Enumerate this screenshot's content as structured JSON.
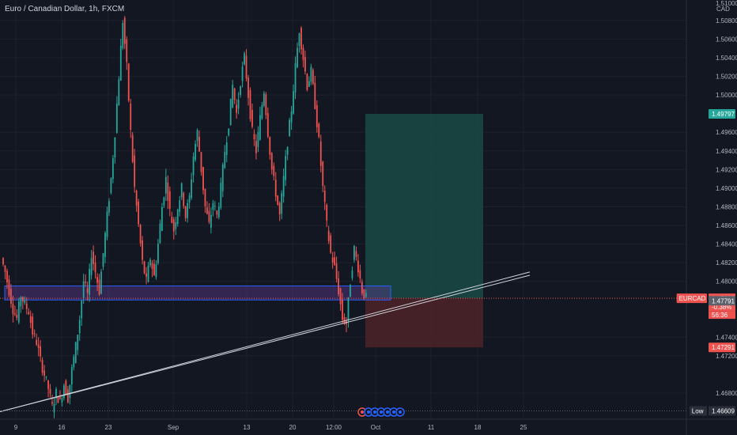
{
  "header": {
    "title": "Euro / Canadian Dollar, 1h, FXCM"
  },
  "colors": {
    "background": "#131722",
    "grid": "#1e222d",
    "up": "#26a69a",
    "down": "#ef5350",
    "zone_fill": "#5b3a8c",
    "zone_border": "#2962ff",
    "target": "#1a4a45",
    "stop": "#4a2228",
    "trendline": "#d1d4dc",
    "axis_text": "#b2b5be"
  },
  "chart_data": {
    "type": "candlestick",
    "title": "Euro / Canadian Dollar, 1h, FXCM",
    "y_unit": "CAD",
    "ylim": [
      1.4652,
      1.5102
    ],
    "y_ticks": [
      "1.50800",
      "1.50600",
      "1.50400",
      "1.50200",
      "1.50000",
      "1.49600",
      "1.49400",
      "1.49200",
      "1.49000",
      "1.48800",
      "1.48600",
      "1.48400",
      "1.48200",
      "1.48000",
      "1.47400",
      "1.47200",
      "1.46800"
    ],
    "y_top_partial": "1.51000",
    "x_ticks": [
      "9",
      "16",
      "23",
      "Sep",
      "13",
      "20",
      "12:00",
      "Oct",
      "11",
      "18",
      "25"
    ],
    "price_path": [
      [
        0,
        1.4825
      ],
      [
        2,
        1.481
      ],
      [
        4,
        1.479
      ],
      [
        6,
        1.477
      ],
      [
        8,
        1.476
      ],
      [
        10,
        1.4785
      ],
      [
        12,
        1.4775
      ],
      [
        14,
        1.4768
      ],
      [
        16,
        1.4745
      ],
      [
        18,
        1.4735
      ],
      [
        20,
        1.4715
      ],
      [
        22,
        1.47
      ],
      [
        24,
        1.4685
      ],
      [
        26,
        1.4665
      ],
      [
        28,
        1.468
      ],
      [
        30,
        1.467
      ],
      [
        32,
        1.469
      ],
      [
        34,
        1.4675
      ],
      [
        36,
        1.4705
      ],
      [
        38,
        1.473
      ],
      [
        40,
        1.476
      ],
      [
        42,
        1.48
      ],
      [
        44,
        1.4785
      ],
      [
        46,
        1.483
      ],
      [
        48,
        1.481
      ],
      [
        50,
        1.479
      ],
      [
        52,
        1.483
      ],
      [
        54,
        1.487
      ],
      [
        56,
        1.491
      ],
      [
        58,
        1.496
      ],
      [
        60,
        1.502
      ],
      [
        62,
        1.508
      ],
      [
        64,
        1.503
      ],
      [
        66,
        1.496
      ],
      [
        68,
        1.49
      ],
      [
        70,
        1.486
      ],
      [
        72,
        1.482
      ],
      [
        74,
        1.48
      ],
      [
        76,
        1.4825
      ],
      [
        78,
        1.4805
      ],
      [
        80,
        1.484
      ],
      [
        82,
        1.488
      ],
      [
        84,
        1.491
      ],
      [
        86,
        1.4875
      ],
      [
        88,
        1.4855
      ],
      [
        90,
        1.488
      ],
      [
        92,
        1.49
      ],
      [
        94,
        1.487
      ],
      [
        96,
        1.489
      ],
      [
        98,
        1.4935
      ],
      [
        100,
        1.496
      ],
      [
        102,
        1.492
      ],
      [
        104,
        1.488
      ],
      [
        106,
        1.486
      ],
      [
        108,
        1.4885
      ],
      [
        110,
        1.487
      ],
      [
        112,
        1.49
      ],
      [
        114,
        1.494
      ],
      [
        116,
        1.497
      ],
      [
        118,
        1.501
      ],
      [
        120,
        1.498
      ],
      [
        122,
        1.5015
      ],
      [
        124,
        1.504
      ],
      [
        126,
        1.5
      ],
      [
        128,
        1.496
      ],
      [
        130,
        1.494
      ],
      [
        132,
        1.4975
      ],
      [
        134,
        1.5005
      ],
      [
        136,
        1.496
      ],
      [
        138,
        1.492
      ],
      [
        140,
        1.4895
      ],
      [
        142,
        1.487
      ],
      [
        144,
        1.491
      ],
      [
        146,
        1.495
      ],
      [
        148,
        1.4985
      ],
      [
        150,
        1.503
      ],
      [
        152,
        1.507
      ],
      [
        154,
        1.504
      ],
      [
        156,
        1.501
      ],
      [
        158,
        1.5025
      ],
      [
        160,
        1.499
      ],
      [
        162,
        1.495
      ],
      [
        164,
        1.49
      ],
      [
        166,
        1.486
      ],
      [
        168,
        1.483
      ],
      [
        170,
        1.4815
      ],
      [
        172,
        1.479
      ],
      [
        174,
        1.476
      ],
      [
        176,
        1.4755
      ],
      [
        178,
        1.48
      ],
      [
        180,
        1.4835
      ],
      [
        182,
        1.4815
      ],
      [
        184,
        1.479
      ],
      [
        186,
        1.4782
      ]
    ],
    "support_zone": {
      "top": 1.4795,
      "bottom": 1.478
    },
    "position": {
      "entry": 1.47818,
      "target": 1.49797,
      "stop": 1.47291
    },
    "trendline": {
      "from": [
        0,
        1.466
      ],
      "to": [
        225,
        1.481
      ]
    },
    "price_tags": [
      {
        "label": "",
        "value": "1.49797",
        "price": 1.49797,
        "color": "#26a69a"
      },
      {
        "label": "EURCAD",
        "value": "1.47818",
        "price": 1.47818,
        "color": "#ef5350",
        "extra": [
          "-0.38%",
          "56:36"
        ]
      },
      {
        "label": "",
        "value": "1.47791",
        "price": 1.47791,
        "color": "#5d606b"
      },
      {
        "label": "",
        "value": "1.47291",
        "price": 1.47291,
        "color": "#ef5350"
      },
      {
        "label": "Low",
        "value": "1.46609",
        "price": 1.46609,
        "color": "#2a2e39"
      }
    ]
  }
}
